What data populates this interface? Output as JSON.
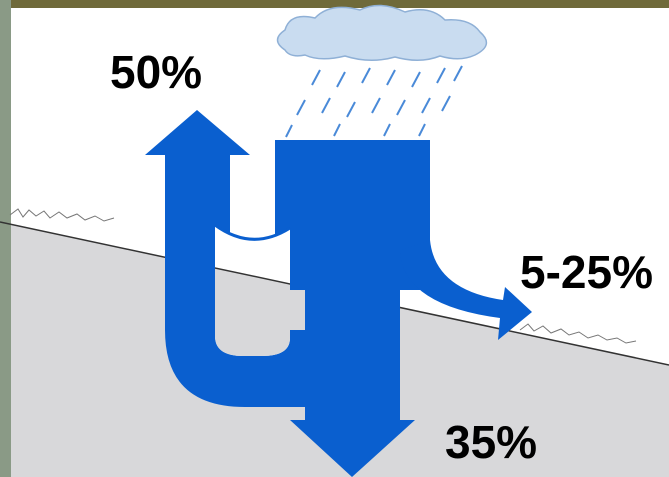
{
  "labels": [
    "50%",
    "5-25%",
    "35%"
  ]
}
